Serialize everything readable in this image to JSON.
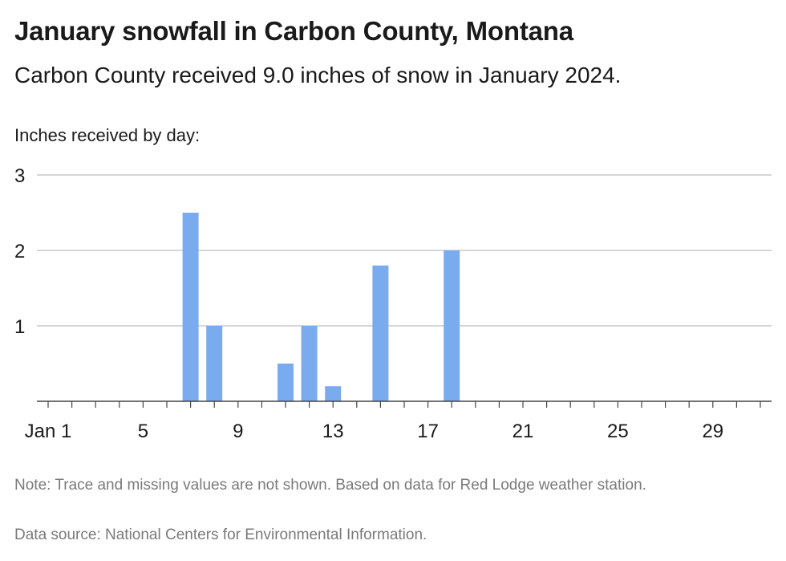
{
  "title": "January snowfall in Carbon County, Montana",
  "subtitle": "Carbon County received 9.0 inches of snow in January 2024.",
  "note": "Note: Trace and missing values are not shown. Based on data for Red Lodge weather station.",
  "source": "Data source: National Centers for Environmental Information.",
  "colors": {
    "bar": "#7aabee",
    "grid": "#bdbdbd",
    "axis": "#444444"
  },
  "chart_data": {
    "type": "bar",
    "title": "January snowfall in Carbon County, Montana",
    "ylabel": "Inches received by day:",
    "xlabel": "",
    "xlim": [
      1,
      31
    ],
    "ylim": [
      0,
      3
    ],
    "yticks": [
      1,
      2,
      3
    ],
    "xticks": [
      {
        "day": 1,
        "label": "Jan 1"
      },
      {
        "day": 5,
        "label": "5"
      },
      {
        "day": 9,
        "label": "9"
      },
      {
        "day": 13,
        "label": "13"
      },
      {
        "day": 17,
        "label": "17"
      },
      {
        "day": 21,
        "label": "21"
      },
      {
        "day": 25,
        "label": "25"
      },
      {
        "day": 29,
        "label": "29"
      }
    ],
    "grid": true,
    "legend": "none",
    "bars": [
      {
        "day": 7,
        "value": 2.5
      },
      {
        "day": 8,
        "value": 1.0
      },
      {
        "day": 11,
        "value": 0.5
      },
      {
        "day": 12,
        "value": 1.0
      },
      {
        "day": 13,
        "value": 0.2
      },
      {
        "day": 15,
        "value": 1.8
      },
      {
        "day": 18,
        "value": 2.0
      }
    ]
  }
}
